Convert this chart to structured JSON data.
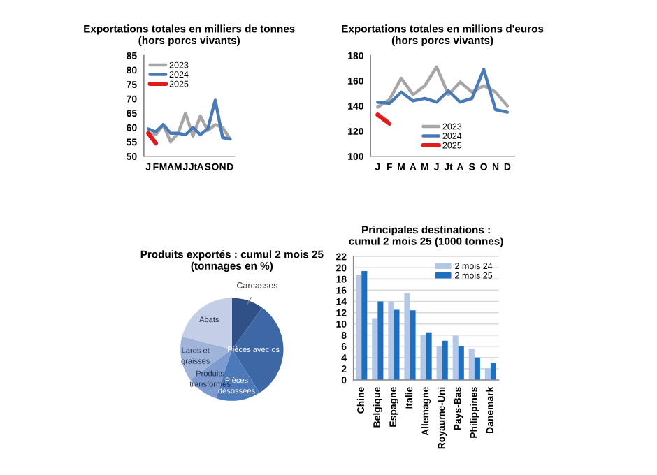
{
  "chart_data": [
    {
      "type": "line",
      "title": "Exportations totales en milliers de tonnes\n(hors porcs vivants)",
      "categories": [
        "J",
        "F",
        "M",
        "A",
        "M",
        "J",
        "Jt",
        "A",
        "S",
        "O",
        "N",
        "D"
      ],
      "ylim": [
        50,
        85
      ],
      "yticks": [
        50,
        55,
        60,
        65,
        70,
        75,
        80,
        85
      ],
      "grid": false,
      "legend": "top left",
      "marker": "none",
      "series": [
        {
          "name": "2023",
          "color": "#a6a6a6",
          "values": [
            58,
            57.5,
            61,
            55,
            58,
            65,
            57,
            64,
            59,
            61,
            60,
            56
          ]
        },
        {
          "name": "2024",
          "color": "#4a7ab5",
          "values": [
            59.5,
            58.5,
            61,
            58,
            58,
            57.5,
            60,
            57.5,
            59.5,
            69.5,
            56.5,
            56
          ]
        },
        {
          "name": "2025",
          "color": "#e31a1c",
          "values": [
            58,
            54.5,
            null,
            null,
            null,
            null,
            null,
            null,
            null,
            null,
            null,
            null
          ]
        }
      ]
    },
    {
      "type": "line",
      "title": "Exportations totales en millions d'euros\n(hors porcs vivants)",
      "categories": [
        "J",
        "F",
        "M",
        "A",
        "M",
        "J",
        "Jt",
        "A",
        "S",
        "O",
        "N",
        "D"
      ],
      "ylim": [
        100,
        180
      ],
      "yticks": [
        100,
        120,
        140,
        160,
        180
      ],
      "grid": false,
      "legend": "bottom",
      "marker": "none",
      "series": [
        {
          "name": "2023",
          "color": "#a6a6a6",
          "values": [
            139,
            145,
            162,
            149,
            156,
            171,
            149,
            159,
            151,
            156,
            151,
            140
          ]
        },
        {
          "name": "2024",
          "color": "#4a7ab5",
          "values": [
            143,
            142,
            151,
            144,
            146,
            143,
            152,
            143,
            146,
            169,
            137,
            135
          ]
        },
        {
          "name": "2025",
          "color": "#e31a1c",
          "values": [
            133,
            126,
            null,
            null,
            null,
            null,
            null,
            null,
            null,
            null,
            null,
            null
          ]
        }
      ]
    },
    {
      "type": "pie",
      "title": "Produits exportés : cumul 2 mois 25\n(tonnages en %)",
      "categories": [
        "Carcasses",
        "Pièces avec os",
        "Pièces\ndésossées",
        "Produits\ntransformés",
        "Lards et\ngraisses",
        "Abats"
      ],
      "values": [
        10,
        31,
        14,
        10,
        14,
        21
      ],
      "colors": [
        "#2f5188",
        "#3d67a5",
        "#4c79ba",
        "#7e9bcf",
        "#a0b4da",
        "#c4cee6"
      ]
    },
    {
      "type": "bar",
      "title": "Principales destinations :\ncumul 2 mois 25 (1000 tonnes)",
      "categories": [
        "Chine",
        "Belgique",
        "Espagne",
        "Italie",
        "Allemagne",
        "Royaume-Uni",
        "Pays-Bas",
        "Philippines",
        "Danemark"
      ],
      "ylim": [
        0,
        22
      ],
      "yticks": [
        0,
        2,
        4,
        6,
        8,
        10,
        12,
        14,
        16,
        18,
        20,
        22
      ],
      "grid": "y",
      "legend": "top right",
      "series": [
        {
          "name": "2 mois 24",
          "color": "#b4c7e7",
          "values": [
            18.8,
            11,
            14,
            15.5,
            8,
            6,
            7.9,
            5.6,
            2.1
          ]
        },
        {
          "name": "2 mois 25",
          "color": "#1f6fbf",
          "values": [
            19.4,
            14,
            12.5,
            12.4,
            8.5,
            7,
            6.1,
            4,
            3.1
          ]
        }
      ]
    }
  ]
}
